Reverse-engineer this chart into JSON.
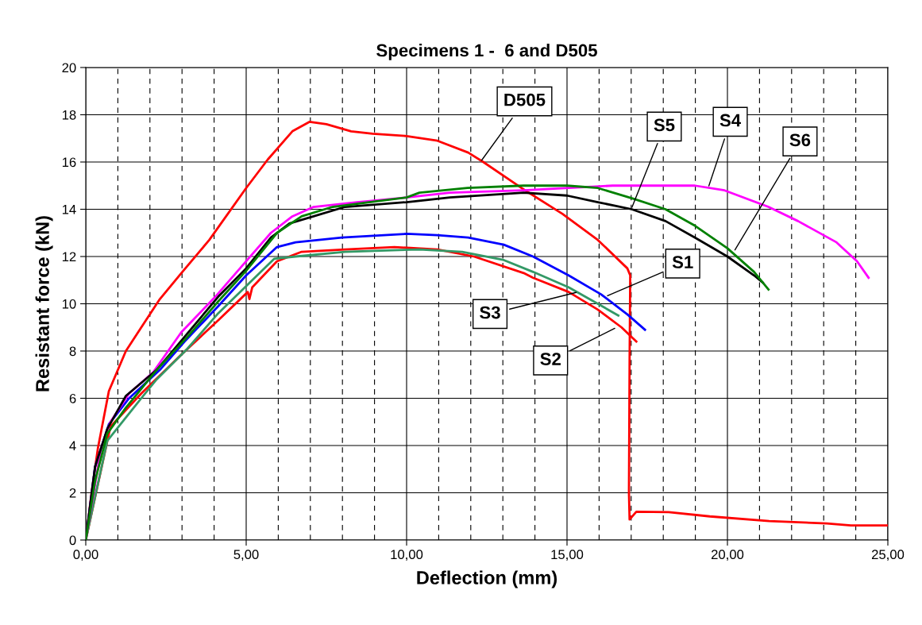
{
  "chart_data": {
    "type": "line",
    "title": "Specimens 1 -  6 and D505",
    "xlabel": "Deflection (mm)",
    "ylabel": "Resistant force (kN)",
    "xlim": [
      0,
      25
    ],
    "ylim": [
      0,
      20
    ],
    "xticks": [
      {
        "value": 0,
        "label": "0,00"
      },
      {
        "value": 1,
        "label": null
      },
      {
        "value": 2,
        "label": null
      },
      {
        "value": 3,
        "label": null
      },
      {
        "value": 4,
        "label": null
      },
      {
        "value": 5,
        "label": "5,00"
      },
      {
        "value": 6,
        "label": null
      },
      {
        "value": 7,
        "label": null
      },
      {
        "value": 8,
        "label": null
      },
      {
        "value": 9,
        "label": null
      },
      {
        "value": 10,
        "label": "10,00"
      },
      {
        "value": 11,
        "label": null
      },
      {
        "value": 12,
        "label": null
      },
      {
        "value": 13,
        "label": null
      },
      {
        "value": 14,
        "label": null
      },
      {
        "value": 15,
        "label": "15,00"
      },
      {
        "value": 16,
        "label": null
      },
      {
        "value": 17,
        "label": null
      },
      {
        "value": 18,
        "label": null
      },
      {
        "value": 19,
        "label": null
      },
      {
        "value": 20,
        "label": "20,00"
      },
      {
        "value": 21,
        "label": null
      },
      {
        "value": 22,
        "label": null
      },
      {
        "value": 23,
        "label": null
      },
      {
        "value": 24,
        "label": null
      },
      {
        "value": 25,
        "label": "25,00"
      }
    ],
    "yticks": [
      0,
      2,
      4,
      6,
      8,
      10,
      12,
      14,
      16,
      18,
      20
    ],
    "grid": true,
    "legend": false,
    "marker": "none",
    "line_style": "solid",
    "series": [
      {
        "color": "#ff0000",
        "x": [
          0,
          0.19,
          0.38,
          0.72,
          1.25,
          1.73,
          2.31,
          2.98,
          3.85,
          5.0,
          5.67,
          6.44,
          6.97,
          7.5,
          8.27,
          8.94,
          10.0,
          10.96,
          11.92,
          12.39,
          13.58,
          14.86,
          15.96,
          16.88,
          16.97,
          16.95,
          16.93,
          16.95,
          17.16,
          18.17,
          19.45,
          21.3,
          23.1,
          23.85,
          25.0
        ],
        "values": [
          0,
          2.1,
          3.9,
          6.3,
          8.0,
          9.0,
          10.2,
          11.3,
          12.7,
          14.9,
          16.1,
          17.3,
          17.7,
          17.6,
          17.3,
          17.2,
          17.1,
          16.9,
          16.4,
          16.0,
          14.9,
          13.8,
          12.7,
          11.5,
          11.2,
          7.6,
          2.0,
          0.87,
          1.2,
          1.18,
          1.0,
          0.8,
          0.7,
          0.62,
          0.62
        ]
      },
      {
        "color": "#0000ff",
        "x": [
          0,
          0.29,
          0.72,
          1.35,
          2.31,
          3.08,
          4.13,
          5.0,
          5.96,
          6.54,
          7.98,
          10.0,
          10.96,
          11.92,
          13.03,
          13.94,
          15.05,
          16.06,
          16.88,
          17.43
        ],
        "values": [
          0,
          3.1,
          4.9,
          6.0,
          7.2,
          8.4,
          9.9,
          11.2,
          12.4,
          12.6,
          12.8,
          12.96,
          12.9,
          12.8,
          12.5,
          12.0,
          11.2,
          10.4,
          9.55,
          8.9
        ]
      },
      {
        "color": "#ff0000",
        "x": [
          0,
          0.77,
          1.73,
          2.98,
          4.13,
          5.05,
          5.1,
          5.19,
          5.96,
          6.73,
          8.08,
          9.62,
          10.96,
          12.1,
          13.65,
          13.94,
          15.05,
          15.96,
          16.7,
          17.16
        ],
        "values": [
          0,
          4.8,
          6.2,
          7.85,
          9.3,
          10.5,
          10.2,
          10.7,
          11.8,
          12.2,
          12.3,
          12.4,
          12.3,
          12.0,
          11.3,
          11.1,
          10.5,
          9.75,
          9.0,
          8.4
        ]
      },
      {
        "color": "#339966",
        "x": [
          0,
          0.67,
          1.73,
          2.21,
          3.17,
          4.13,
          5.19,
          5.87,
          6.54,
          8.08,
          10.4,
          11.73,
          13.03,
          13.94,
          15.05,
          15.96,
          16.6
        ],
        "values": [
          0,
          4.2,
          6.0,
          6.8,
          8.1,
          9.6,
          11.0,
          11.9,
          12.0,
          12.2,
          12.3,
          12.2,
          11.85,
          11.35,
          10.7,
          10.0,
          9.5
        ]
      },
      {
        "color": "#ff00ff",
        "x": [
          0,
          0.48,
          0.77,
          1.35,
          2.1,
          2.98,
          4.04,
          5.0,
          5.77,
          6.44,
          7.1,
          8.46,
          10.0,
          11.35,
          13.65,
          16.42,
          18.99,
          19.91,
          21.28,
          22.2,
          23.4,
          24.04,
          24.4
        ],
        "values": [
          0,
          3.9,
          5.0,
          6.2,
          7.1,
          8.8,
          10.3,
          11.8,
          13.0,
          13.7,
          14.1,
          14.3,
          14.5,
          14.7,
          14.8,
          15.0,
          15.0,
          14.8,
          14.1,
          13.5,
          12.6,
          11.8,
          11.1
        ]
      },
      {
        "color": "#000000",
        "x": [
          0,
          0.29,
          0.67,
          1.25,
          2.21,
          3.08,
          4.13,
          5.0,
          5.77,
          6.35,
          7.1,
          8.08,
          10.0,
          11.35,
          13.65,
          15.0,
          15.96,
          17.02,
          18.07,
          18.99,
          20.0,
          20.83,
          21.1
        ],
        "values": [
          0,
          3.1,
          4.7,
          6.1,
          7.2,
          8.6,
          10.3,
          11.5,
          12.8,
          13.4,
          13.7,
          14.1,
          14.3,
          14.5,
          14.7,
          14.58,
          14.3,
          14.0,
          13.5,
          12.8,
          12.0,
          11.2,
          10.9
        ]
      },
      {
        "color": "#008000",
        "x": [
          0,
          0.29,
          0.67,
          1.25,
          2.21,
          3.17,
          4.13,
          5.0,
          5.96,
          6.73,
          7.69,
          10.0,
          10.4,
          11.9,
          13.65,
          15.0,
          15.96,
          17.06,
          18.07,
          18.99,
          20.0,
          20.83,
          21.28
        ],
        "values": [
          0,
          2.5,
          4.5,
          5.6,
          7.2,
          8.6,
          10.1,
          11.4,
          13.0,
          13.7,
          14.1,
          14.5,
          14.7,
          14.9,
          15.0,
          15.0,
          14.9,
          14.45,
          14.0,
          13.3,
          12.35,
          11.35,
          10.6
        ]
      }
    ],
    "annotations": [
      {
        "text": "D505",
        "x": 12.3,
        "y": 16.0
      },
      {
        "text": "S5",
        "x": 17.0,
        "y": 14.0
      },
      {
        "text": "S4",
        "x": 19.4,
        "y": 14.9
      },
      {
        "text": "S6",
        "x": 20.2,
        "y": 12.2
      },
      {
        "text": "S1",
        "x": 16.2,
        "y": 10.3
      },
      {
        "text": "S3",
        "x": 15.35,
        "y": 10.5
      },
      {
        "text": "S2",
        "x": 16.55,
        "y": 9.0
      }
    ]
  }
}
